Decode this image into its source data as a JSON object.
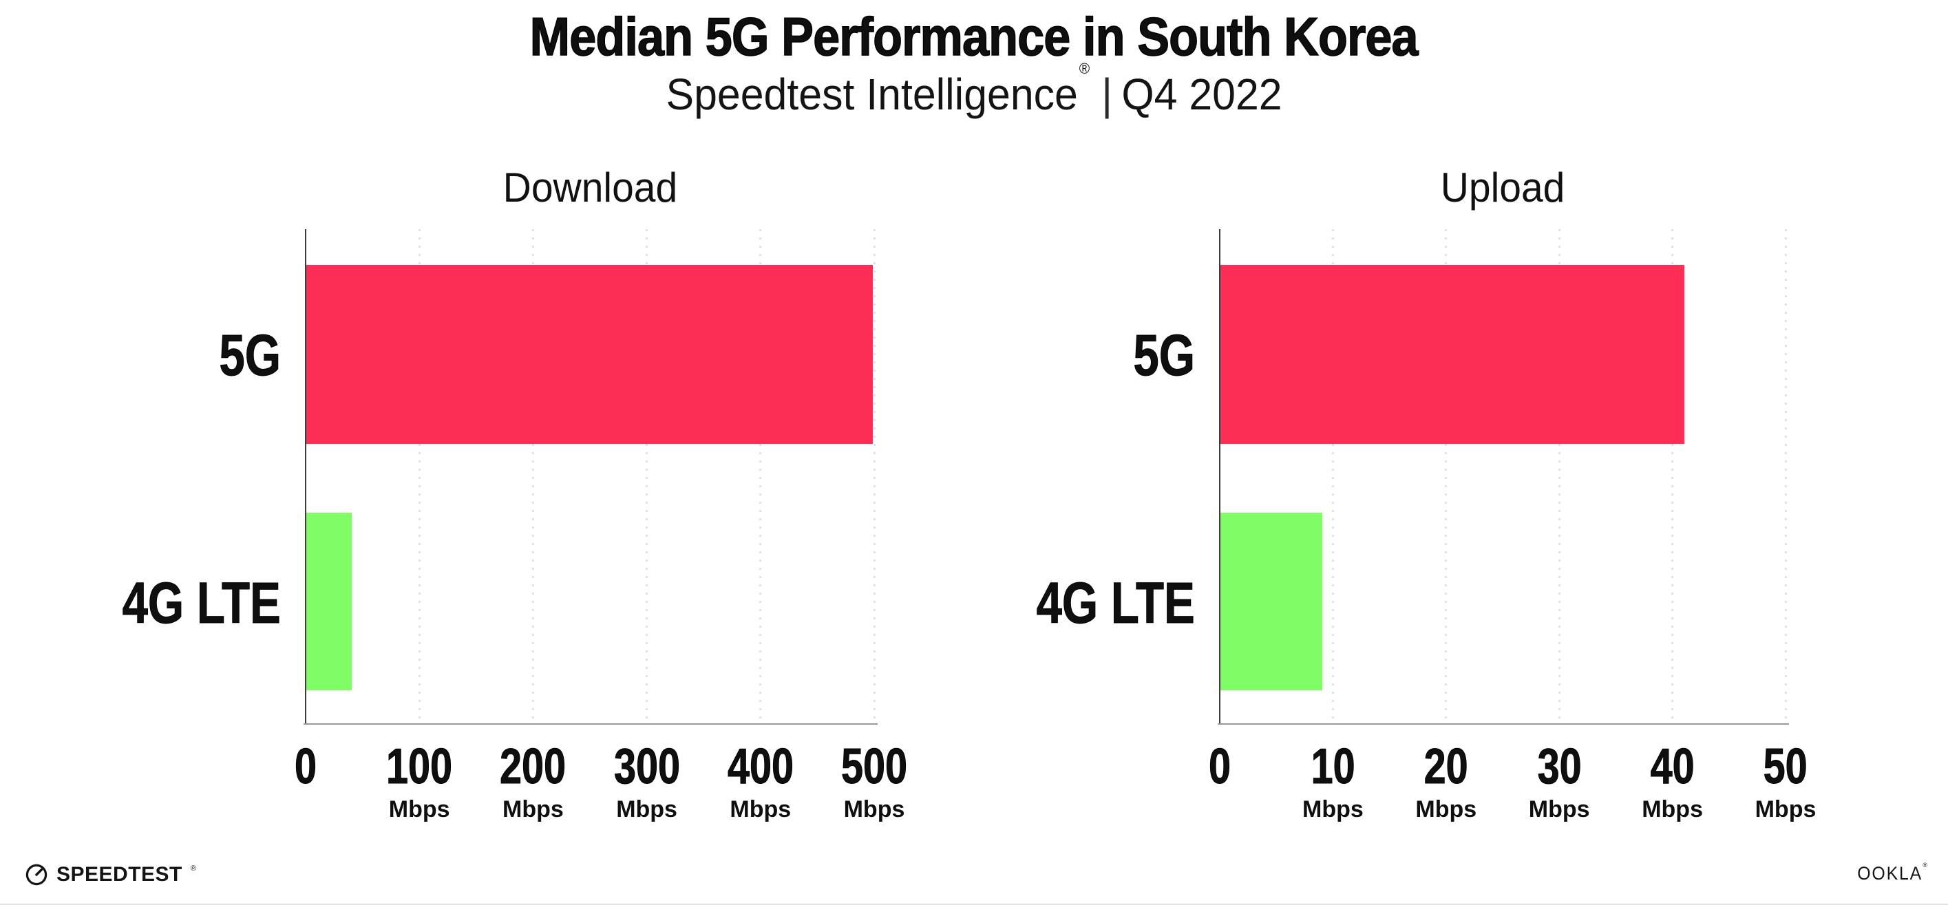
{
  "header": {
    "title": "Median 5G Performance in South Korea",
    "subtitle_brand": "Speedtest Intelligence",
    "subtitle_trademark": "®",
    "subtitle_separator": "|",
    "subtitle_period": "Q4 2022"
  },
  "colors": {
    "bar_5g": "#FD2E56",
    "bar_4g": "#80FC66",
    "grid_dots": "#E0E0EB",
    "axis_spine": "#3C3C3C",
    "axis_baseline": "#9A9A9A",
    "text": "#0F0F0F"
  },
  "chart_data": [
    {
      "type": "bar",
      "orientation": "horizontal",
      "title": "Download",
      "categories": [
        "5G",
        "4G LTE"
      ],
      "values": [
        498,
        40
      ],
      "unit": "Mbps",
      "xlim": [
        0,
        500
      ],
      "grid": "vertical-dotted",
      "legend": "none",
      "ticks": [
        {
          "value": 0,
          "label": "0",
          "unit": ""
        },
        {
          "value": 100,
          "label": "100",
          "unit": "Mbps"
        },
        {
          "value": 200,
          "label": "200",
          "unit": "Mbps"
        },
        {
          "value": 300,
          "label": "300",
          "unit": "Mbps"
        },
        {
          "value": 400,
          "label": "400",
          "unit": "Mbps"
        },
        {
          "value": 500,
          "label": "500",
          "unit": "Mbps"
        }
      ]
    },
    {
      "type": "bar",
      "orientation": "horizontal",
      "title": "Upload",
      "categories": [
        "5G",
        "4G LTE"
      ],
      "values": [
        41,
        9
      ],
      "unit": "Mbps",
      "xlim": [
        0,
        50
      ],
      "grid": "vertical-dotted",
      "legend": "none",
      "ticks": [
        {
          "value": 0,
          "label": "0",
          "unit": ""
        },
        {
          "value": 10,
          "label": "10",
          "unit": "Mbps"
        },
        {
          "value": 20,
          "label": "20",
          "unit": "Mbps"
        },
        {
          "value": 30,
          "label": "30",
          "unit": "Mbps"
        },
        {
          "value": 40,
          "label": "40",
          "unit": "Mbps"
        },
        {
          "value": 50,
          "label": "50",
          "unit": "Mbps"
        }
      ]
    }
  ],
  "footer": {
    "speedtest_text": "SPEEDTEST",
    "speedtest_trademark": "®",
    "ookla_text": "OOKLA",
    "ookla_trademark": "®"
  }
}
